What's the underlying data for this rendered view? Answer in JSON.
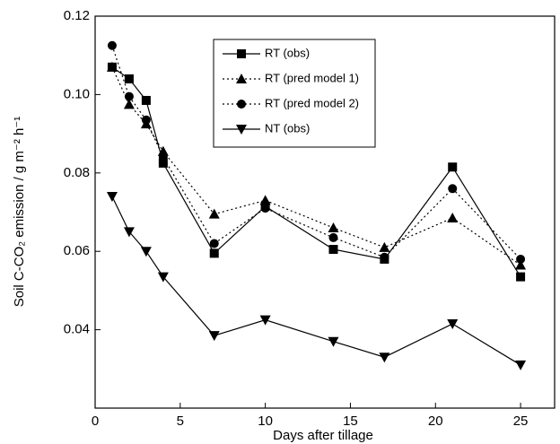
{
  "chart_data": {
    "type": "line",
    "xlabel": "Days after tillage",
    "ylabel": "Soil C-CO₂ emission / g m⁻² h⁻¹",
    "x": [
      1,
      2,
      3,
      4,
      7,
      10,
      14,
      17,
      21,
      25
    ],
    "series": [
      {
        "name": "RT (obs)",
        "color": "#000000",
        "linestyle": "solid",
        "marker": "square",
        "values": [
          0.107,
          0.104,
          0.0985,
          0.0825,
          0.0595,
          0.0715,
          0.0605,
          0.058,
          0.0815,
          0.0535
        ]
      },
      {
        "name": "RT (pred model 1)",
        "color": "#000000",
        "linestyle": "dotted",
        "marker": "triangle",
        "values": [
          0.107,
          0.0975,
          0.0925,
          0.0855,
          0.0695,
          0.073,
          0.066,
          0.061,
          0.0685,
          0.0565
        ]
      },
      {
        "name": "RT (pred model 2)",
        "color": "#000000",
        "linestyle": "dotted",
        "marker": "circle",
        "values": [
          0.1125,
          0.0995,
          0.0935,
          0.084,
          0.062,
          0.071,
          0.0635,
          0.0585,
          0.076,
          0.058
        ]
      },
      {
        "name": "NT (obs)",
        "color": "#000000",
        "linestyle": "solid",
        "marker": "triangle-down",
        "values": [
          0.074,
          0.065,
          0.06,
          0.0535,
          0.0385,
          0.0425,
          0.037,
          0.033,
          0.0415,
          0.031
        ]
      }
    ],
    "xlim": [
      0,
      27
    ],
    "xticks": [
      0,
      5,
      10,
      15,
      20,
      25
    ],
    "ylim": [
      0.02,
      0.12
    ],
    "yticks": [
      0.04,
      0.06,
      0.08,
      {
        "value": 0.1,
        "label": "0.10"
      },
      0.12
    ],
    "legend": "upper center"
  }
}
